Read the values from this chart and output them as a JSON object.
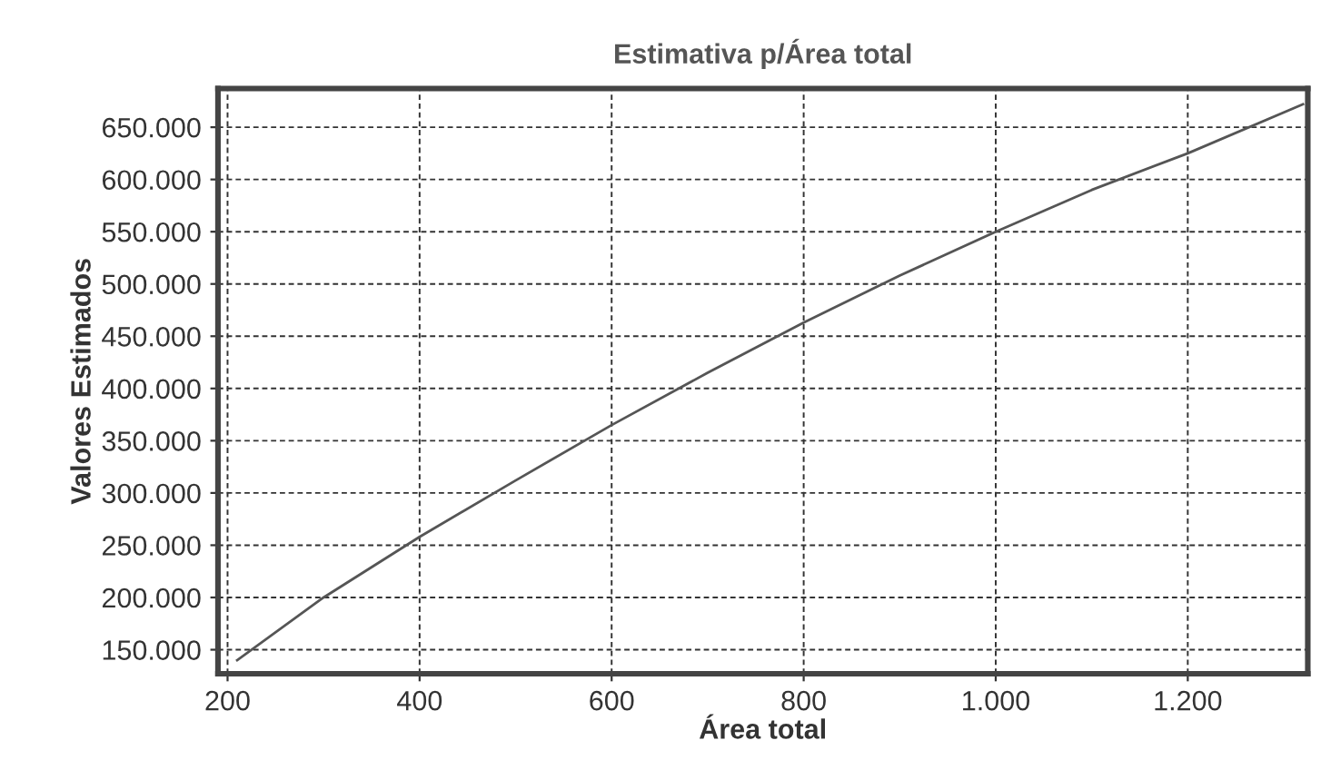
{
  "chart_data": {
    "type": "line",
    "title": "Estimativa p/Área total",
    "xlabel": "Área total",
    "ylabel": "Valores Estimados",
    "x": [
      210,
      300,
      400,
      500,
      600,
      700,
      800,
      900,
      1000,
      1100,
      1200,
      1320
    ],
    "series": [
      {
        "color": "#555555",
        "values": [
          140000,
          200000,
          258000,
          312000,
          365000,
          415000,
          463000,
          508000,
          550000,
          590000,
          625000,
          672000
        ]
      }
    ],
    "xlim": [
      190,
      1325
    ],
    "ylim": [
      127000,
      687000
    ],
    "xticks": [
      {
        "value": 200,
        "label": "200"
      },
      {
        "value": 400,
        "label": "400"
      },
      {
        "value": 600,
        "label": "600"
      },
      {
        "value": 800,
        "label": "800"
      },
      {
        "value": 1000,
        "label": "1.000"
      },
      {
        "value": 1200,
        "label": "1.200"
      }
    ],
    "yticks": [
      {
        "value": 150000,
        "label": "150.000"
      },
      {
        "value": 200000,
        "label": "200.000"
      },
      {
        "value": 250000,
        "label": "250.000"
      },
      {
        "value": 300000,
        "label": "300.000"
      },
      {
        "value": 350000,
        "label": "350.000"
      },
      {
        "value": 400000,
        "label": "400.000"
      },
      {
        "value": 450000,
        "label": "450.000"
      },
      {
        "value": 500000,
        "label": "500.000"
      },
      {
        "value": 550000,
        "label": "550.000"
      },
      {
        "value": 600000,
        "label": "600.000"
      },
      {
        "value": 650000,
        "label": "650.000"
      }
    ],
    "grid": true,
    "line_style": "solid",
    "marker": "none"
  }
}
